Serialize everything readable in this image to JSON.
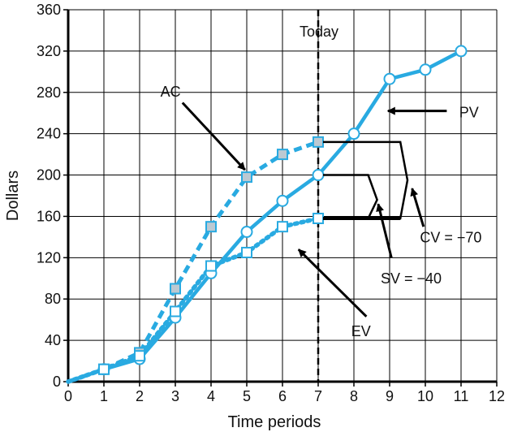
{
  "chart_data": {
    "type": "line",
    "xlabel": "Time periods",
    "ylabel": "Dollars",
    "xlim": [
      0,
      12
    ],
    "ylim": [
      0,
      360
    ],
    "x_ticks": [
      "0",
      "1",
      "2",
      "3",
      "4",
      "5",
      "6",
      "7",
      "8",
      "9",
      "10",
      "11",
      "12"
    ],
    "y_ticks": [
      "0",
      "40",
      "80",
      "120",
      "160",
      "200",
      "240",
      "280",
      "320",
      "360"
    ],
    "grid": true,
    "colors": {
      "series": "#29aae1",
      "axis": "#000000",
      "grid": "#000000",
      "marker_fill_ac": "#bcc9d2"
    },
    "series": [
      {
        "name": "PV",
        "line_style": "solid",
        "marker": "circle-open",
        "x": [
          0,
          1,
          2,
          3,
          4,
          5,
          6,
          7,
          8,
          9,
          10,
          11
        ],
        "y": [
          0,
          12,
          22,
          62,
          105,
          145,
          175,
          200,
          240,
          293,
          302,
          320
        ]
      },
      {
        "name": "AC",
        "line_style": "dashed",
        "marker": "square-filled",
        "x": [
          0,
          1,
          2,
          3,
          4,
          5,
          6,
          7
        ],
        "y": [
          0,
          12,
          28,
          90,
          150,
          198,
          220,
          232
        ]
      },
      {
        "name": "EV",
        "line_style": "dotted",
        "marker": "square-open",
        "x": [
          0,
          1,
          2,
          3,
          4,
          5,
          6,
          7
        ],
        "y": [
          0,
          12,
          25,
          68,
          112,
          125,
          150,
          158
        ]
      }
    ],
    "today": {
      "x": 7,
      "label": "Today"
    },
    "annotations": {
      "ac": "AC",
      "pv": "PV",
      "ev": "EV",
      "cv": "CV = −70",
      "sv": "SV = −40"
    }
  }
}
